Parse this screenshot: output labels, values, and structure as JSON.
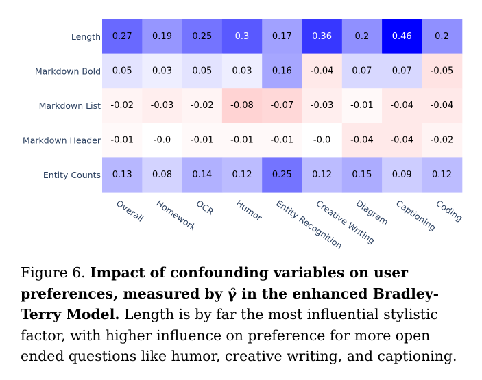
{
  "chart_data": {
    "type": "heatmap",
    "rows": [
      "Length",
      "Markdown Bold",
      "Markdown List",
      "Markdown Header",
      "Entity Counts"
    ],
    "columns": [
      "Overall",
      "Homework",
      "OCR",
      "Humor",
      "Entity Recognition",
      "Creative Writing",
      "Diagram",
      "Captioning",
      "Coding"
    ],
    "values": [
      [
        "0.27",
        "0.19",
        "0.25",
        "0.3",
        "0.17",
        "0.36",
        "0.2",
        "0.46",
        "0.2"
      ],
      [
        "0.05",
        "0.03",
        "0.05",
        "0.03",
        "0.16",
        "-0.04",
        "0.07",
        "0.07",
        "-0.05"
      ],
      [
        "-0.02",
        "-0.03",
        "-0.02",
        "-0.08",
        "-0.07",
        "-0.03",
        "-0.01",
        "-0.04",
        "-0.04"
      ],
      [
        "-0.01",
        "-0.0",
        "-0.01",
        "-0.01",
        "-0.01",
        "-0.0",
        "-0.04",
        "-0.04",
        "-0.02"
      ],
      [
        "0.13",
        "0.08",
        "0.14",
        "0.12",
        "0.25",
        "0.12",
        "0.15",
        "0.09",
        "0.12"
      ]
    ],
    "colormap": "bwr",
    "color_range": [
      -0.46,
      0.46
    ],
    "colors": {
      "positive": "#0000ff",
      "neutral": "#ffffff",
      "negative": "#ff0000",
      "label": "#2a3f5f"
    }
  },
  "caption": {
    "prefix": "Figure 6.",
    "bold": "Impact of confounding variables on user preferences, measured by γ̂ in the enhanced Bradley-Terry Model.",
    "body": "Length is by far the most influential stylistic factor, with higher influence on preference for more open ended questions like humor, creative writing, and captioning."
  }
}
